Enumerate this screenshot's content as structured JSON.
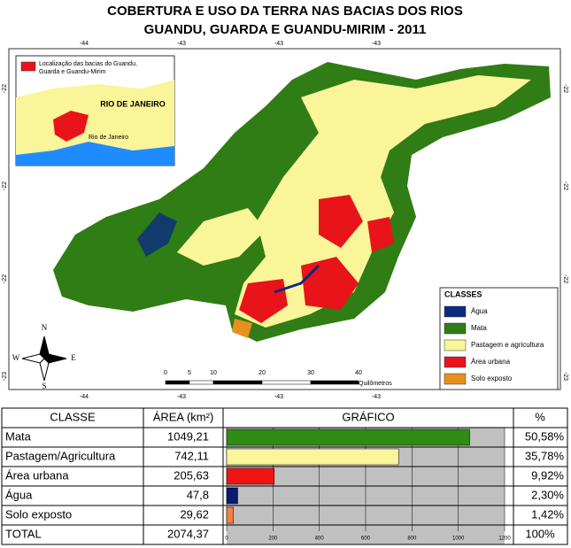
{
  "title": [
    "COBERTURA E USO DA TERRA NAS BACIAS DOS RIOS",
    "GUANDU, GUARDA E GUANDU-MIRIM - 2011"
  ],
  "map": {
    "top_ticks": [
      "-44",
      "-43",
      "-43",
      "-43"
    ],
    "bottom_ticks": [
      "-44",
      "-43",
      "-43",
      "-43"
    ],
    "left_ticks": [
      "-22",
      "-22",
      "-22",
      "-23"
    ],
    "right_ticks": [
      "-22",
      "-22",
      "-22",
      "-23"
    ],
    "inset": {
      "legend": [
        "Localização das bacias do Guandu,",
        "Guarda e Guandu-Mirim"
      ],
      "state_label": "RIO DE JANEIRO",
      "city_label": "Rio de Janeiro"
    },
    "compass": {
      "n": "N",
      "s": "S",
      "e": "E",
      "w": "W"
    },
    "scale": {
      "ticks": [
        "0",
        "5",
        "10",
        "20",
        "30",
        "40"
      ],
      "unit": "Quilômetros"
    },
    "legend": {
      "title": "CLASSES",
      "items": [
        {
          "label": "Água",
          "color": "#0a2a80"
        },
        {
          "label": "Mata",
          "color": "#2f7d14"
        },
        {
          "label": "Pastagem e agricultura",
          "color": "#fbf59a"
        },
        {
          "label": "Área urbana",
          "color": "#e8141a"
        },
        {
          "label": "Solo exposto",
          "color": "#e8901e"
        }
      ]
    }
  },
  "table": {
    "headers": [
      "CLASSE",
      "ÁREA (km²)",
      "GRÁFICO",
      "%"
    ],
    "rows": [
      [
        "Mata",
        "1049,21",
        "50,58%"
      ],
      [
        "Pastagem/Agricultura",
        "742,11",
        "35,78%"
      ],
      [
        "Área urbana",
        "205,63",
        "9,92%"
      ],
      [
        "Água",
        "47,8",
        "2,30%"
      ],
      [
        "Solo exposto",
        "29,62",
        "1,42%"
      ]
    ],
    "total": [
      "TOTAL",
      "2074,37",
      "100%"
    ]
  },
  "chart_data": {
    "type": "bar",
    "values": [
      1049.21,
      742.11,
      205.63,
      47.8,
      29.62
    ],
    "colors": [
      "#2f8c14",
      "#fbf59a",
      "#f01414",
      "#0a1a70",
      "#f0804a"
    ],
    "xlim": [
      0,
      1200
    ],
    "xticks": [
      0,
      200,
      400,
      600,
      800,
      1000,
      1200
    ],
    "grid": true
  }
}
